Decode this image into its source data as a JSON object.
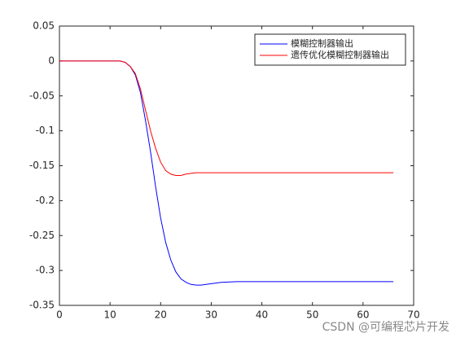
{
  "chart_data": {
    "type": "line",
    "x": [
      0,
      5,
      10,
      12,
      13,
      14,
      15,
      16,
      17,
      18,
      19,
      20,
      21,
      22,
      23,
      24,
      25,
      26,
      27,
      28,
      30,
      32,
      35,
      40,
      50,
      66
    ],
    "series": [
      {
        "name": "模糊控制器输出",
        "color": "#0000ff",
        "values": [
          0,
          0,
          0,
          0,
          -0.002,
          -0.008,
          -0.02,
          -0.045,
          -0.085,
          -0.13,
          -0.18,
          -0.225,
          -0.26,
          -0.285,
          -0.302,
          -0.312,
          -0.317,
          -0.32,
          -0.321,
          -0.321,
          -0.319,
          -0.317,
          -0.316,
          -0.316,
          -0.316,
          -0.316
        ]
      },
      {
        "name": "遗传优化模糊控制器输出",
        "color": "#ff0000",
        "values": [
          0,
          0,
          0,
          0,
          -0.002,
          -0.008,
          -0.018,
          -0.04,
          -0.07,
          -0.1,
          -0.125,
          -0.145,
          -0.157,
          -0.162,
          -0.164,
          -0.164,
          -0.162,
          -0.161,
          -0.16,
          -0.16,
          -0.16,
          -0.16,
          -0.16,
          -0.16,
          -0.16,
          -0.16
        ]
      }
    ],
    "xlim": [
      0,
      70
    ],
    "xticks": [
      0,
      10,
      20,
      30,
      40,
      50,
      60,
      70
    ],
    "ylim": [
      -0.35,
      0.05
    ],
    "yticks": [
      0.05,
      0,
      -0.05,
      -0.1,
      -0.15,
      -0.2,
      -0.25,
      -0.3,
      -0.35
    ],
    "legend": "northeast",
    "watermark": "CSDN @可编程芯片开发"
  }
}
